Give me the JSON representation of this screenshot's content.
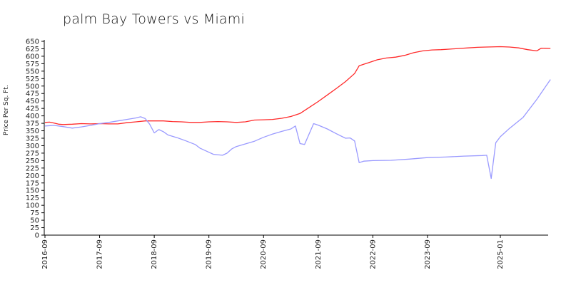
{
  "chart_data": {
    "type": "line",
    "title": "palm Bay Towers vs Miami",
    "xlabel": "",
    "ylabel": "Price Per Sq. Ft.",
    "ylim": [
      0,
      650
    ],
    "yticks": [
      0,
      25,
      50,
      75,
      100,
      125,
      150,
      175,
      200,
      225,
      250,
      275,
      300,
      325,
      350,
      375,
      400,
      425,
      450,
      475,
      500,
      525,
      550,
      575,
      600,
      625,
      650
    ],
    "xticks": [
      "2016-09",
      "2017-09",
      "2018-09",
      "2019-09",
      "2020-09",
      "2021-09",
      "2022-09",
      "2023-09",
      "2025-01"
    ],
    "grid": false,
    "legend": "none",
    "series": [
      {
        "color": "#ff2a2a",
        "points": [
          [
            "2016-09",
            378
          ],
          [
            "2016-10",
            379
          ],
          [
            "2016-11",
            376
          ],
          [
            "2016-12",
            372
          ],
          [
            "2017-01",
            371
          ],
          [
            "2017-03",
            372
          ],
          [
            "2017-05",
            374
          ],
          [
            "2017-07",
            373
          ],
          [
            "2017-09",
            374
          ],
          [
            "2017-11",
            373
          ],
          [
            "2018-01",
            373
          ],
          [
            "2018-03",
            377
          ],
          [
            "2018-05",
            380
          ],
          [
            "2018-07",
            383
          ],
          [
            "2018-09",
            383
          ],
          [
            "2018-11",
            383
          ],
          [
            "2019-01",
            381
          ],
          [
            "2019-03",
            380
          ],
          [
            "2019-05",
            378
          ],
          [
            "2019-07",
            378
          ],
          [
            "2019-09",
            380
          ],
          [
            "2019-11",
            381
          ],
          [
            "2020-01",
            380
          ],
          [
            "2020-03",
            378
          ],
          [
            "2020-05",
            380
          ],
          [
            "2020-07",
            386
          ],
          [
            "2020-09",
            387
          ],
          [
            "2020-11",
            388
          ],
          [
            "2021-01",
            392
          ],
          [
            "2021-03",
            398
          ],
          [
            "2021-05",
            408
          ],
          [
            "2021-07",
            428
          ],
          [
            "2021-09",
            448
          ],
          [
            "2021-11",
            470
          ],
          [
            "2022-01",
            492
          ],
          [
            "2022-03",
            515
          ],
          [
            "2022-05",
            542
          ],
          [
            "2022-06",
            568
          ],
          [
            "2022-08",
            578
          ],
          [
            "2022-10",
            588
          ],
          [
            "2022-12",
            594
          ],
          [
            "2023-02",
            597
          ],
          [
            "2023-04",
            603
          ],
          [
            "2023-06",
            612
          ],
          [
            "2023-08",
            618
          ],
          [
            "2023-10",
            621
          ],
          [
            "2023-12",
            622
          ],
          [
            "2024-02",
            624
          ],
          [
            "2024-04",
            626
          ],
          [
            "2024-06",
            628
          ],
          [
            "2024-08",
            630
          ],
          [
            "2024-10",
            631
          ],
          [
            "2025-01",
            632
          ],
          [
            "2025-03",
            631
          ],
          [
            "2025-05",
            628
          ],
          [
            "2025-07",
            622
          ],
          [
            "2025-09",
            618
          ],
          [
            "2025-10",
            627
          ],
          [
            "2025-12",
            626
          ]
        ]
      },
      {
        "color": "#9a9aff",
        "points": [
          [
            "2016-09",
            366
          ],
          [
            "2016-11",
            368
          ],
          [
            "2017-01",
            364
          ],
          [
            "2017-03",
            359
          ],
          [
            "2017-05",
            363
          ],
          [
            "2017-07",
            368
          ],
          [
            "2017-09",
            374
          ],
          [
            "2017-11",
            378
          ],
          [
            "2018-01",
            383
          ],
          [
            "2018-03",
            388
          ],
          [
            "2018-05",
            393
          ],
          [
            "2018-06",
            397
          ],
          [
            "2018-07",
            391
          ],
          [
            "2018-08",
            372
          ],
          [
            "2018-09",
            343
          ],
          [
            "2018-10",
            354
          ],
          [
            "2018-11",
            347
          ],
          [
            "2018-12",
            336
          ],
          [
            "2019-02",
            327
          ],
          [
            "2019-04",
            316
          ],
          [
            "2019-06",
            304
          ],
          [
            "2019-07",
            292
          ],
          [
            "2019-09",
            278
          ],
          [
            "2019-10",
            271
          ],
          [
            "2019-12",
            268
          ],
          [
            "2020-01",
            275
          ],
          [
            "2020-02",
            289
          ],
          [
            "2020-03",
            297
          ],
          [
            "2020-05",
            306
          ],
          [
            "2020-07",
            315
          ],
          [
            "2020-09",
            328
          ],
          [
            "2020-11",
            339
          ],
          [
            "2021-01",
            348
          ],
          [
            "2021-03",
            356
          ],
          [
            "2021-04",
            366
          ],
          [
            "2021-05",
            307
          ],
          [
            "2021-06",
            304
          ],
          [
            "2021-08",
            374
          ],
          [
            "2021-09",
            369
          ],
          [
            "2021-11",
            356
          ],
          [
            "2022-01",
            340
          ],
          [
            "2022-03",
            325
          ],
          [
            "2022-04",
            326
          ],
          [
            "2022-05",
            316
          ],
          [
            "2022-06",
            243
          ],
          [
            "2022-07",
            248
          ],
          [
            "2022-09",
            250
          ],
          [
            "2023-01",
            251
          ],
          [
            "2023-05",
            255
          ],
          [
            "2023-09",
            260
          ],
          [
            "2024-01",
            262
          ],
          [
            "2024-05",
            265
          ],
          [
            "2024-09",
            267
          ],
          [
            "2024-10",
            268
          ],
          [
            "2024-11",
            190
          ],
          [
            "2024-12",
            310
          ],
          [
            "2025-01",
            330
          ],
          [
            "2025-03",
            358
          ],
          [
            "2025-06",
            395
          ],
          [
            "2025-09",
            455
          ],
          [
            "2025-12",
            522
          ]
        ]
      }
    ]
  }
}
